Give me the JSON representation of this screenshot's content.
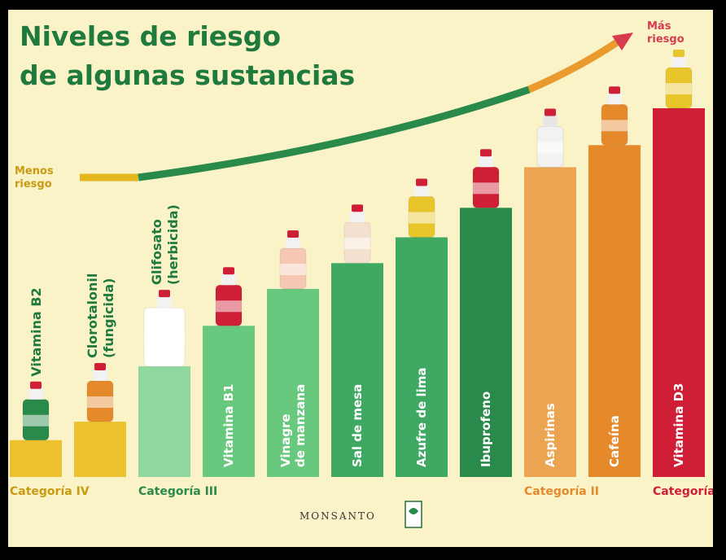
{
  "title": [
    "Niveles de riesgo",
    "de algunas sustancias"
  ],
  "risk_axis": {
    "low": [
      "Menos",
      "riesgo"
    ],
    "high": [
      "Más",
      "riesgo"
    ]
  },
  "logo": "MONSANTO",
  "colors": {
    "background": "#fbf3c8",
    "title": "#1f7a3e",
    "curve_low": "#e3b71d",
    "curve_mid": "#2a8a4c",
    "curve_high": "#eb9a2e"
  },
  "chart_data": {
    "type": "bar",
    "title": "Niveles de riesgo de algunas sustancias",
    "categories": [
      "Vitamina B2",
      "Clorotalonil (fungicida)",
      "Glifosato (herbicida)",
      "Vitamina B1",
      "Vinagre de manzana",
      "Sal de mesa",
      "Azufre de lima",
      "Ibuprofeno",
      "Aspirinas",
      "Cafeína",
      "Vitamina D3"
    ],
    "label_lines": [
      [
        "Vitamina B2"
      ],
      [
        "Clorotalonil",
        "(fungicida)"
      ],
      [
        "Glifosato",
        "(herbicida)"
      ],
      [
        "Vitamina B1"
      ],
      [
        "Vinagre",
        "de manzana"
      ],
      [
        "Sal de mesa"
      ],
      [
        "Azufre de lima"
      ],
      [
        "Ibuprofeno"
      ],
      [
        "Aspirinas"
      ],
      [
        "Cafeína"
      ],
      [
        "Vitamina D3"
      ]
    ],
    "label_position": [
      "above",
      "above",
      "above",
      "inside",
      "inside",
      "inside",
      "inside",
      "inside",
      "inside",
      "inside",
      "inside"
    ],
    "values": [
      1,
      1.5,
      3,
      4.1,
      5.1,
      5.8,
      6.5,
      7.3,
      8.4,
      9.0,
      10
    ],
    "bar_colors": [
      "#ecc12f",
      "#ecc12f",
      "#8fd79e",
      "#67c87e",
      "#67c87e",
      "#3fa862",
      "#3fa862",
      "#2a8a4c",
      "#eba552",
      "#e5892a",
      "#cf1f36"
    ],
    "group_labels": [
      {
        "text": "Categoría IV",
        "color": "#c99a12",
        "first": 0
      },
      {
        "text": "Categoría III",
        "color": "#2a8a4c",
        "first": 2
      },
      {
        "text": "Categoría II",
        "color": "#e5892a",
        "first": 8
      },
      {
        "text": "Categoría I",
        "color": "#cf1f36",
        "first": 10
      }
    ],
    "ylim": [
      0,
      10
    ],
    "grid": false
  }
}
